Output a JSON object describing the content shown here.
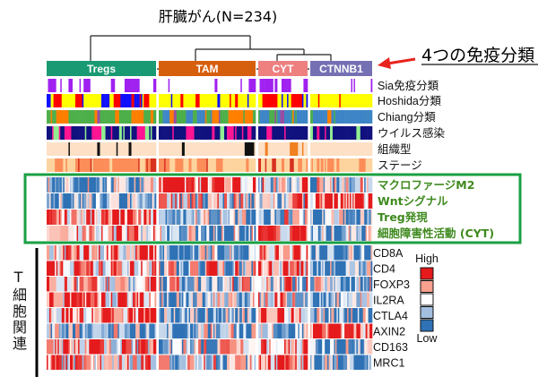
{
  "chart_data": {
    "type": "heatmap",
    "title": "肝臓がん(N=234)",
    "callout": "4つの免疫分類",
    "clusters": [
      {
        "name": "Tregs",
        "n": 80,
        "color": "#1a9a72"
      },
      {
        "name": "TAM",
        "n": 71,
        "color": "#d65f0e"
      },
      {
        "name": "CYT",
        "n": 36,
        "color": "#ee8080"
      },
      {
        "name": "CTNNB1",
        "n": 47,
        "color": "#7570b3"
      }
    ],
    "annotation_rows": [
      {
        "label": "Sia免疫分類",
        "palette": [
          "#ffffff",
          "#a020f0"
        ],
        "cluster_freq": [
          [
            0.45,
            0.55
          ],
          [
            0.9,
            0.1
          ],
          [
            0.4,
            0.6
          ],
          [
            0.97,
            0.03
          ]
        ]
      },
      {
        "label": "Hoshida分類",
        "palette": [
          "#ffff00",
          "#ff0000",
          "#1010ff"
        ],
        "cluster_freq": [
          [
            0.35,
            0.4,
            0.25
          ],
          [
            0.75,
            0.1,
            0.15
          ],
          [
            0.5,
            0.35,
            0.15
          ],
          [
            0.9,
            0.05,
            0.05
          ]
        ]
      },
      {
        "label": "Chiang分類",
        "palette": [
          "#4daf4a",
          "#ff7f00",
          "#984ea3",
          "#3d85c6"
        ],
        "cluster_freq": [
          [
            0.8,
            0.1,
            0.1,
            0
          ],
          [
            0.45,
            0.35,
            0.05,
            0.15
          ],
          [
            0.2,
            0.05,
            0.25,
            0.5
          ],
          [
            0.05,
            0.1,
            0,
            0.85
          ]
        ]
      },
      {
        "label": "ウイルス感染",
        "palette": [
          "#10107f",
          "#ff1493",
          "#90ee90"
        ],
        "cluster_freq": [
          [
            0.5,
            0.3,
            0.2
          ],
          [
            0.6,
            0.35,
            0.05
          ],
          [
            0.7,
            0.2,
            0.1
          ],
          [
            0.85,
            0.1,
            0.05
          ]
        ]
      },
      {
        "label": "組織型",
        "palette": [
          "#fde0c5",
          "#111111",
          "#f08020"
        ],
        "cluster_freq": [
          [
            0.8,
            0.15,
            0.05
          ],
          [
            0.9,
            0.06,
            0.04
          ],
          [
            0.88,
            0.07,
            0.05
          ],
          [
            1,
            0,
            0
          ]
        ]
      },
      {
        "label": "ステージ",
        "palette": [
          "#fdd49e",
          "#fc8d59",
          "#d7301f"
        ],
        "cluster_freq": [
          [
            0.45,
            0.4,
            0.15
          ],
          [
            0.55,
            0.35,
            0.1
          ],
          [
            0.5,
            0.35,
            0.15
          ],
          [
            0.5,
            0.4,
            0.1
          ]
        ]
      }
    ],
    "score_rows": [
      {
        "label": "マクロファージM2",
        "cluster_means": [
          -0.5,
          0.8,
          0.0,
          -0.3
        ]
      },
      {
        "label": "Wntシグナル",
        "cluster_means": [
          -0.6,
          -0.1,
          0.1,
          0.8
        ]
      },
      {
        "label": "Treg発現",
        "cluster_means": [
          0.7,
          -0.4,
          -0.2,
          -0.5
        ]
      },
      {
        "label": "細胞障害性活動 (CYT)",
        "cluster_means": [
          0.2,
          -0.4,
          0.8,
          -0.4
        ]
      }
    ],
    "gene_group_label": "T細胞関連",
    "gene_rows": [
      {
        "label": "CD8A",
        "cluster_means": [
          0.5,
          -0.4,
          0.8,
          -0.6
        ]
      },
      {
        "label": "CD4",
        "cluster_means": [
          0.4,
          -0.1,
          0.5,
          -0.5
        ]
      },
      {
        "label": "FOXP3",
        "cluster_means": [
          0.2,
          -0.1,
          0.0,
          -0.3
        ]
      },
      {
        "label": "IL2RA",
        "cluster_means": [
          0.5,
          -0.4,
          0.3,
          -0.5
        ]
      },
      {
        "label": "CTLA4",
        "cluster_means": [
          0.6,
          -0.5,
          0.4,
          -0.5
        ]
      },
      {
        "label": "AXIN2",
        "cluster_means": [
          -0.4,
          -0.3,
          -0.4,
          0.8
        ]
      },
      {
        "label": "CD163",
        "cluster_means": [
          0.3,
          -0.2,
          0.6,
          -0.5
        ]
      },
      {
        "label": "MRC1",
        "cluster_means": [
          0.3,
          -0.2,
          0.5,
          -0.4
        ]
      }
    ],
    "legend": {
      "high": "High",
      "low": "Low",
      "colors": [
        "#e41a1c",
        "#f9a08e",
        "#ffffff",
        "#a3bfe0",
        "#2f72b5"
      ]
    },
    "highlight_color": "#1aa043",
    "arrow_color": "#e8231e"
  }
}
